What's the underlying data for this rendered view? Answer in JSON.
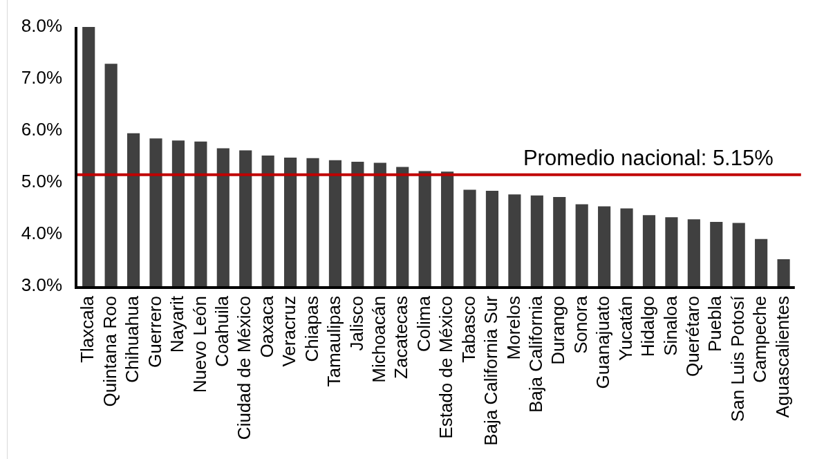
{
  "chart_data": {
    "type": "bar",
    "categories": [
      "Tlaxcala",
      "Quintana Roo",
      "Chihuahua",
      "Guerrero",
      "Nayarit",
      "Nuevo León",
      "Coahuila",
      "Ciudad de México",
      "Oaxaca",
      "Veracruz",
      "Chiapas",
      "Tamaulipas",
      "Jalisco",
      "Michoacán",
      "Zacatecas",
      "Colima",
      "Estado de México",
      "Tabasco",
      "Baja California Sur",
      "Morelos",
      "Baja California",
      "Durango",
      "Sonora",
      "Guanajuato",
      "Yucatán",
      "Hidalgo",
      "Sinaloa",
      "Querétaro",
      "Puebla",
      "San Luis Potosí",
      "Campeche",
      "Aguascalientes"
    ],
    "values": [
      8.0,
      7.29,
      5.95,
      5.85,
      5.81,
      5.79,
      5.66,
      5.62,
      5.52,
      5.48,
      5.47,
      5.43,
      5.4,
      5.38,
      5.3,
      5.22,
      5.21,
      4.86,
      4.84,
      4.77,
      4.75,
      4.72,
      4.58,
      4.54,
      4.5,
      4.37,
      4.33,
      4.29,
      4.24,
      4.22,
      3.91,
      3.52
    ],
    "color": "#404040",
    "ylim": [
      3,
      8
    ],
    "yticks": [
      {
        "value": 3,
        "label": "3.0%"
      },
      {
        "value": 4,
        "label": "4.0%"
      },
      {
        "value": 5,
        "label": "5.0%"
      },
      {
        "value": 6,
        "label": "6.0%"
      },
      {
        "value": 7,
        "label": "7.0%"
      },
      {
        "value": 8,
        "label": "8.0%"
      }
    ],
    "ref_lines": [
      {
        "axis": "y",
        "value": 5.15,
        "label": "Promedio nacional: 5.15%",
        "color": "#c00000"
      }
    ]
  }
}
